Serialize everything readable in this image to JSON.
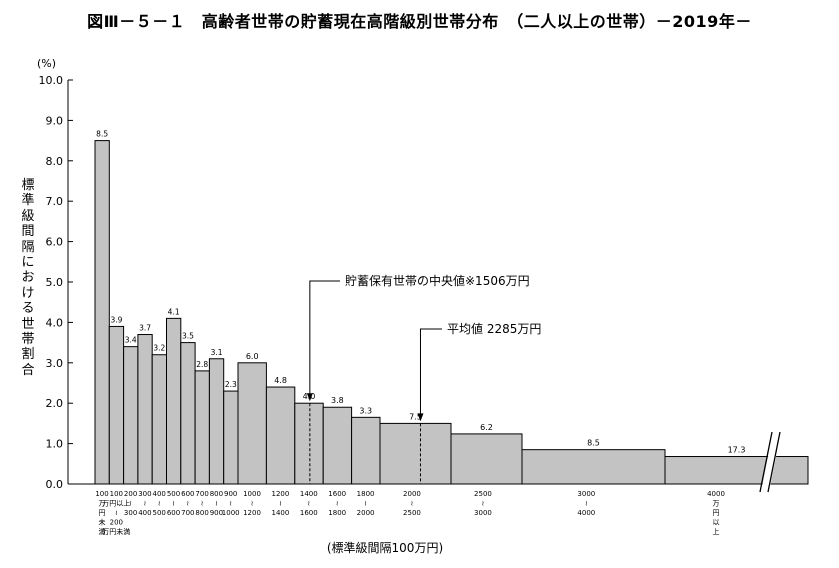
{
  "title": "図Ⅲ－５－１　高齢者世帯の貯蓄現在高階級別世帯分布　（二人以上の世帯）－2019年－",
  "chart_data": {
    "type": "bar",
    "ylabel": "標準級間隔における世帯割合",
    "yunit": "(%)",
    "xlabel": "(標準級間隔100万円)",
    "ylim": [
      0,
      10
    ],
    "yticks": [
      "0.0",
      "1.0",
      "2.0",
      "3.0",
      "4.0",
      "5.0",
      "6.0",
      "7.0",
      "8.0",
      "9.0",
      "10.0"
    ],
    "grid": false,
    "bars": [
      {
        "from": 0,
        "to": 100,
        "value": 8.5,
        "label": "8.5"
      },
      {
        "from": 100,
        "to": 200,
        "value": 3.9,
        "label": "3.9"
      },
      {
        "from": 200,
        "to": 300,
        "value": 3.4,
        "label": "3.4"
      },
      {
        "from": 300,
        "to": 400,
        "value": 3.7,
        "label": "3.7"
      },
      {
        "from": 400,
        "to": 500,
        "value": 3.2,
        "label": "3.2"
      },
      {
        "from": 500,
        "to": 600,
        "value": 4.1,
        "label": "4.1"
      },
      {
        "from": 600,
        "to": 700,
        "value": 3.5,
        "label": "3.5"
      },
      {
        "from": 700,
        "to": 800,
        "value": 2.8,
        "label": "2.8"
      },
      {
        "from": 800,
        "to": 900,
        "value": 3.1,
        "label": "3.1"
      },
      {
        "from": 900,
        "to": 1000,
        "value": 2.3,
        "label": "2.3"
      },
      {
        "from": 1000,
        "to": 1200,
        "value": 3.0,
        "label": "6.0"
      },
      {
        "from": 1200,
        "to": 1400,
        "value": 2.4,
        "label": "4.8"
      },
      {
        "from": 1400,
        "to": 1600,
        "value": 2.0,
        "label": "4.0"
      },
      {
        "from": 1600,
        "to": 1800,
        "value": 1.9,
        "label": "3.8"
      },
      {
        "from": 1800,
        "to": 2000,
        "value": 1.65,
        "label": "3.3"
      },
      {
        "from": 2000,
        "to": 2500,
        "value": 1.5,
        "label": "7.5"
      },
      {
        "from": 2500,
        "to": 3000,
        "value": 1.24,
        "label": "6.2"
      },
      {
        "from": 3000,
        "to": 4000,
        "value": 0.85,
        "label": "8.5"
      },
      {
        "from": 4000,
        "to": null,
        "value": 0.68,
        "label": "17.3"
      }
    ],
    "x_groups": [
      {
        "lines": [
          "100",
          "万",
          "円",
          "未",
          "満"
        ]
      },
      {
        "lines": [
          "100",
          "万円以上",
          "≀",
          "200",
          "万円未満"
        ]
      },
      {
        "lines": [
          "200",
          "≀",
          "300"
        ]
      },
      {
        "lines": [
          "300",
          "≀",
          "400"
        ]
      },
      {
        "lines": [
          "400",
          "≀",
          "500"
        ]
      },
      {
        "lines": [
          "500",
          "≀",
          "600"
        ]
      },
      {
        "lines": [
          "600",
          "≀",
          "700"
        ]
      },
      {
        "lines": [
          "700",
          "≀",
          "800"
        ]
      },
      {
        "lines": [
          "800",
          "≀",
          "900"
        ]
      },
      {
        "lines": [
          "900",
          "≀",
          "1000"
        ]
      },
      {
        "lines": [
          "1000",
          "≀",
          "1200"
        ]
      },
      {
        "lines": [
          "1200",
          "≀",
          "1400"
        ]
      },
      {
        "lines": [
          "1400",
          "≀",
          "1600"
        ]
      },
      {
        "lines": [
          "1600",
          "≀",
          "1800"
        ]
      },
      {
        "lines": [
          "1800",
          "≀",
          "2000"
        ]
      },
      {
        "lines": [
          "2000",
          "≀",
          "2500"
        ]
      },
      {
        "lines": [
          "2500",
          "≀",
          "3000"
        ]
      },
      {
        "lines": [
          "3000",
          "≀",
          "4000"
        ]
      },
      {
        "lines": [
          "4000",
          "万",
          "円",
          "以",
          "上"
        ]
      }
    ],
    "annotations": [
      {
        "text": "貯蓄保有世帯の中央値※1506万円",
        "x": 1506
      },
      {
        "text": "平均値 2285万円",
        "x": 2285
      }
    ]
  }
}
